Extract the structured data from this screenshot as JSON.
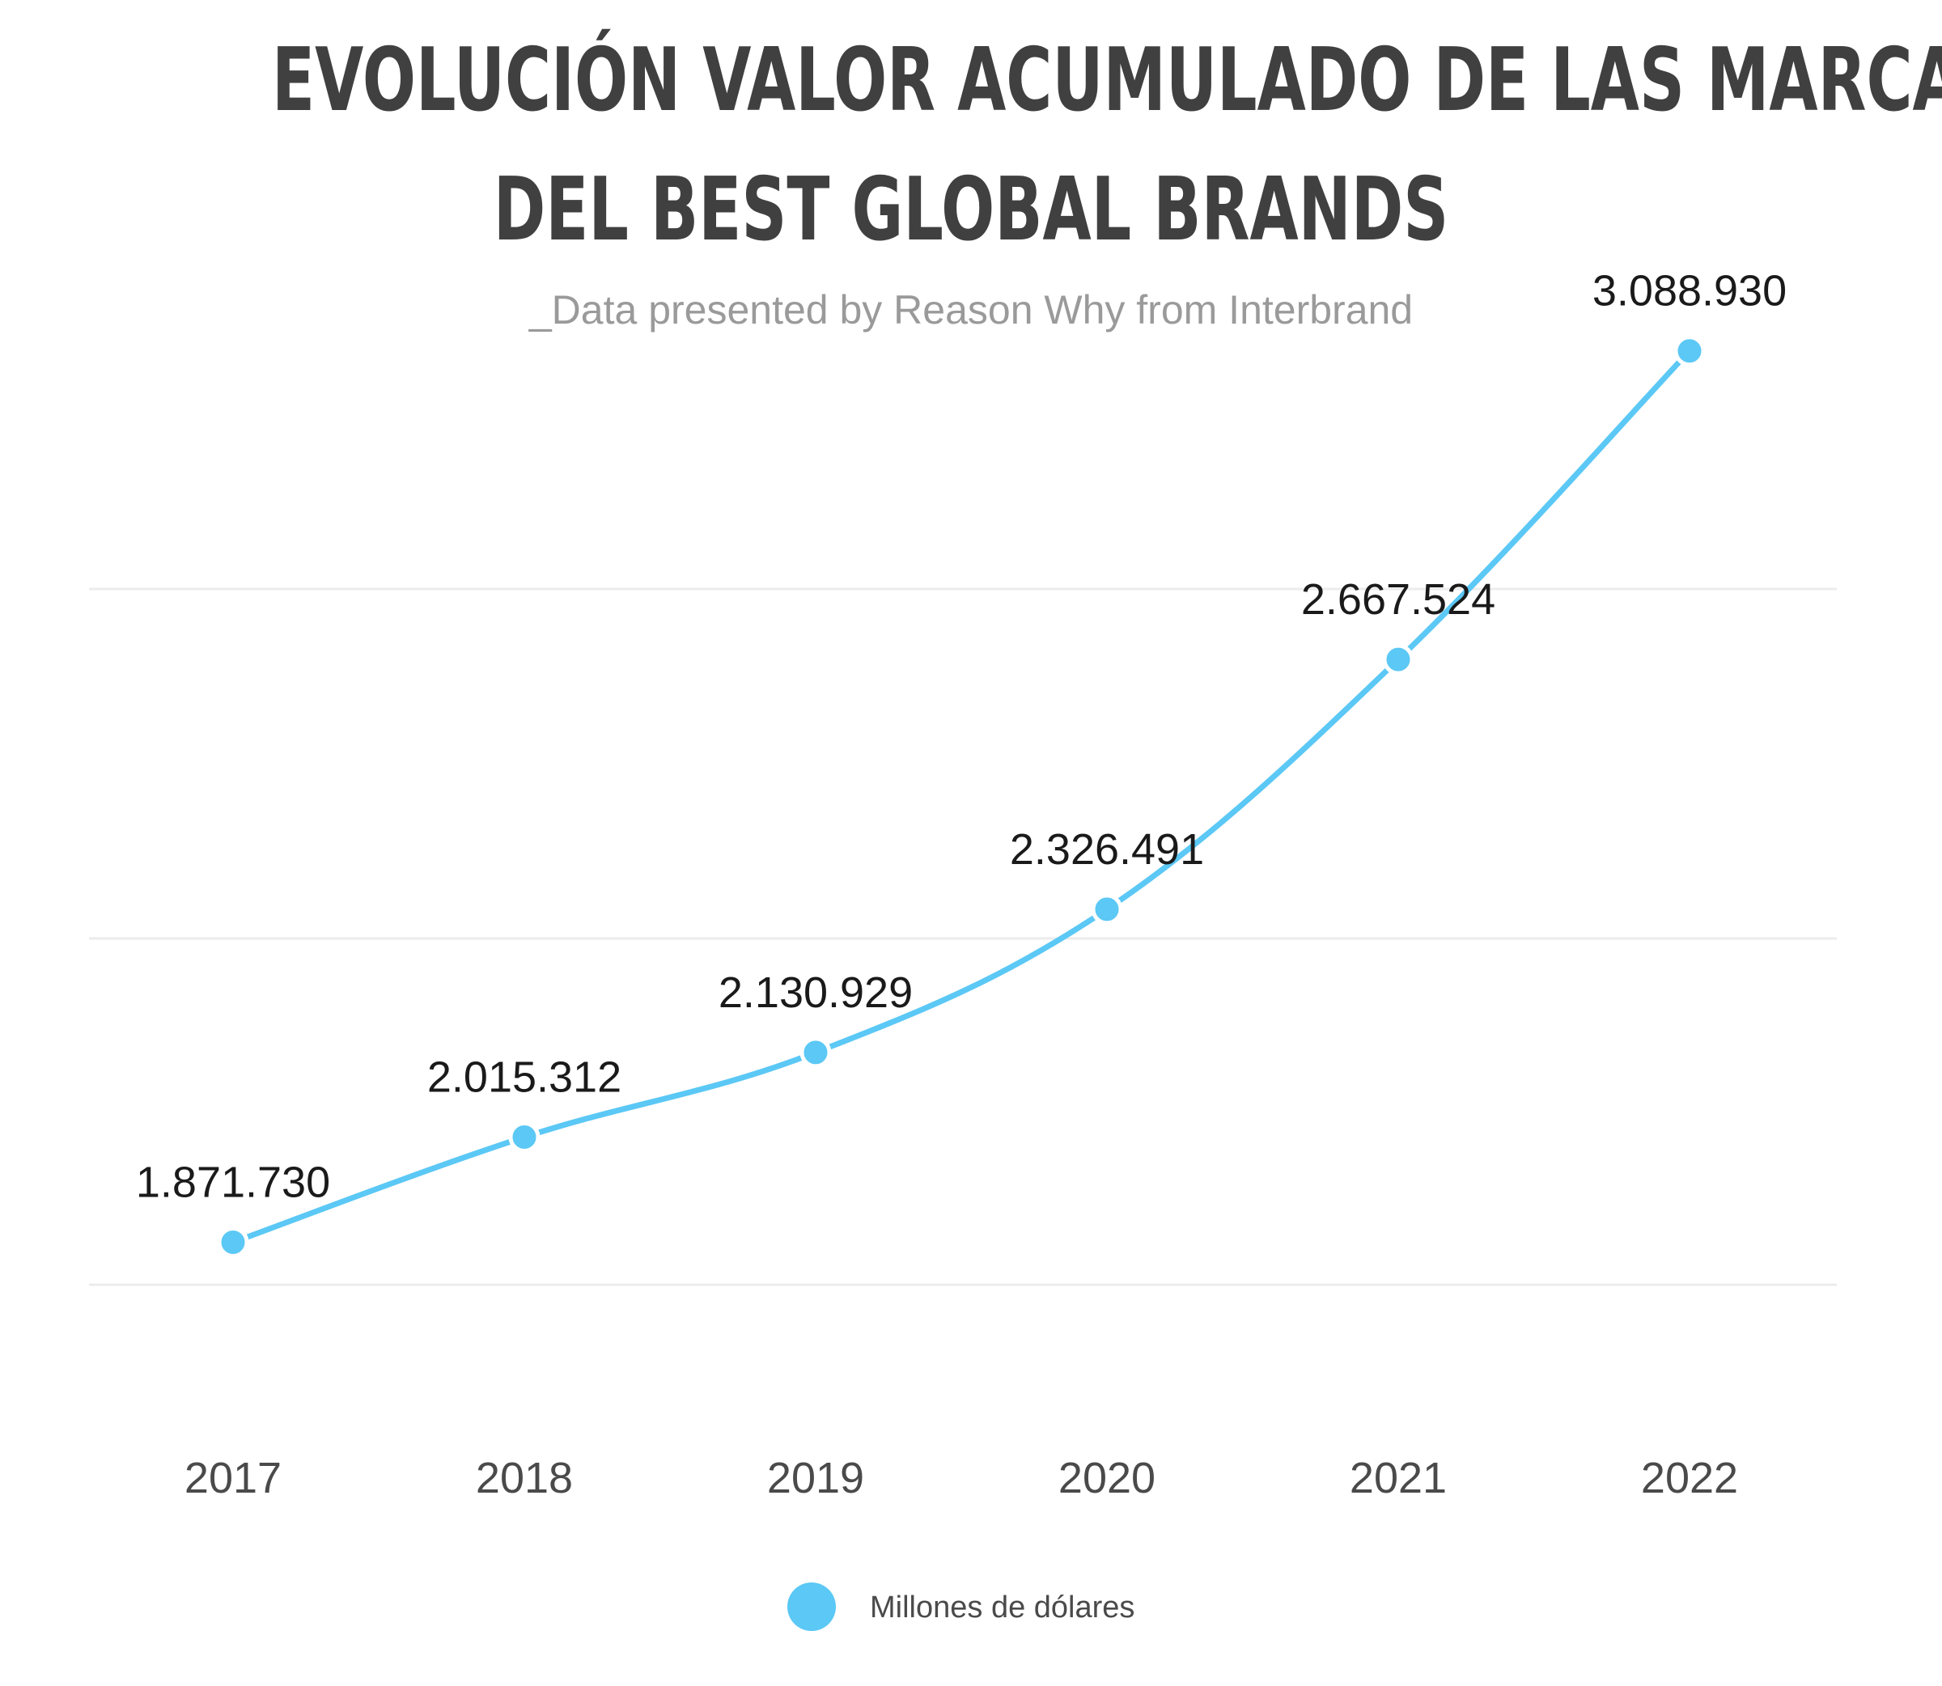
{
  "chart_data": {
    "type": "line",
    "title": [
      "EVOLUCIÓN VALOR ACUMULADO DE LAS MARCAS",
      "DEL BEST GLOBAL BRANDS"
    ],
    "subtitle": "_Data presented by Reason Why from Interbrand",
    "categories": [
      "2017",
      "2018",
      "2019",
      "2020",
      "2021",
      "2022"
    ],
    "series": [
      {
        "name": "Millones de dólares",
        "values": [
          1871730,
          2015312,
          2130929,
          2326491,
          2667524,
          3088930
        ],
        "labels": [
          "1.871.730",
          "2.015.312",
          "2.130.929",
          "2.326.491",
          "2.667.524",
          "3.088.930"
        ],
        "color": "#5bc8f5"
      }
    ],
    "ylim": [
      1690000,
      2850000
    ],
    "grid": true,
    "legend": "bottom-center",
    "colors": {
      "line": "#5bc8f5",
      "grid": "#ececec"
    }
  }
}
